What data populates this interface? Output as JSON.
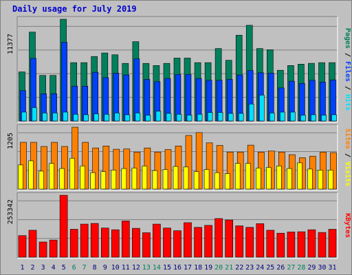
{
  "title": "Daily usage for July 2019",
  "colors": {
    "hits": "#00805c",
    "files": "#0040ff",
    "pages": "#00e0ff",
    "visits": "#ffff00",
    "sites": "#ff8000",
    "kbytes": "#ff0000",
    "weekend_day_label": "#00805c",
    "weekday_label": "#000080"
  },
  "chart_data": [
    {
      "type": "bar",
      "name": "hits-files-pages",
      "categories": [
        "1",
        "2",
        "3",
        "4",
        "5",
        "6",
        "7",
        "8",
        "9",
        "10",
        "11",
        "12",
        "13",
        "14",
        "15",
        "16",
        "17",
        "18",
        "19",
        "20",
        "21",
        "22",
        "23",
        "24",
        "25",
        "26",
        "27",
        "28",
        "29",
        "30",
        "31"
      ],
      "ylabel_parts": [
        "Pages",
        "Files",
        "Hits"
      ],
      "ymax_label": "11377",
      "ylim": [
        0,
        11377
      ],
      "series": [
        {
          "name": "Hits",
          "values": [
            5490,
            9940,
            5100,
            5100,
            11377,
            6530,
            6530,
            7210,
            7600,
            7400,
            6440,
            8870,
            6440,
            6200,
            6440,
            7030,
            7030,
            6530,
            6530,
            8100,
            6790,
            9590,
            10700,
            8100,
            7970,
            5670,
            6200,
            6360,
            6450,
            6530,
            6530
          ]
        },
        {
          "name": "Files",
          "values": [
            3400,
            7000,
            3050,
            3050,
            8800,
            3900,
            3900,
            5450,
            4850,
            5350,
            5150,
            6950,
            4650,
            4400,
            4750,
            5200,
            5200,
            4750,
            4550,
            4550,
            4650,
            5150,
            5650,
            5400,
            5350,
            3700,
            4450,
            4200,
            4550,
            4350,
            4600
          ]
        },
        {
          "name": "Pages",
          "values": [
            1000,
            1500,
            900,
            900,
            1000,
            750,
            700,
            800,
            750,
            900,
            700,
            900,
            650,
            1100,
            850,
            750,
            650,
            750,
            950,
            950,
            850,
            850,
            1900,
            2900,
            900,
            1000,
            1000,
            650,
            700,
            650,
            700
          ]
        }
      ]
    },
    {
      "type": "bar",
      "name": "sites-visits",
      "categories": [
        "1",
        "2",
        "3",
        "4",
        "5",
        "6",
        "7",
        "8",
        "9",
        "10",
        "11",
        "12",
        "13",
        "14",
        "15",
        "16",
        "17",
        "18",
        "19",
        "20",
        "21",
        "22",
        "23",
        "24",
        "25",
        "26",
        "27",
        "28",
        "29",
        "30",
        "31"
      ],
      "ylabel_parts": [
        "Sites",
        "Visits"
      ],
      "ymax_label": "1205",
      "ylim": [
        0,
        1205
      ],
      "series": [
        {
          "name": "Sites",
          "values": [
            910,
            910,
            830,
            910,
            830,
            1205,
            910,
            800,
            840,
            775,
            780,
            720,
            800,
            720,
            770,
            840,
            1045,
            1100,
            900,
            850,
            720,
            720,
            855,
            720,
            740,
            720,
            670,
            610,
            640,
            720,
            710
          ]
        },
        {
          "name": "Visits",
          "values": [
            470,
            550,
            350,
            500,
            400,
            600,
            450,
            320,
            340,
            370,
            400,
            410,
            450,
            360,
            380,
            440,
            430,
            340,
            380,
            320,
            300,
            500,
            500,
            410,
            420,
            450,
            400,
            510,
            390,
            370,
            370
          ]
        }
      ]
    },
    {
      "type": "bar",
      "name": "kbytes",
      "categories": [
        "1",
        "2",
        "3",
        "4",
        "5",
        "6",
        "7",
        "8",
        "9",
        "10",
        "11",
        "12",
        "13",
        "14",
        "15",
        "16",
        "17",
        "18",
        "19",
        "20",
        "21",
        "22",
        "23",
        "24",
        "25",
        "26",
        "27",
        "28",
        "29",
        "30",
        "31"
      ],
      "ylabel_parts": [
        "KBytes"
      ],
      "ymax_label": "253342",
      "ylim": [
        0,
        253342
      ],
      "series": [
        {
          "name": "KBytes",
          "values": [
            88000,
            110000,
            62000,
            70000,
            253342,
            114000,
            135000,
            138000,
            119000,
            112000,
            148000,
            118000,
            100000,
            135000,
            119000,
            108000,
            141000,
            122000,
            130000,
            158000,
            152000,
            128000,
            122000,
            137000,
            110000,
            98000,
            103000,
            104000,
            112000,
            101000,
            114000
          ]
        }
      ]
    }
  ],
  "weekend_days": [
    "6",
    "7",
    "13",
    "14",
    "20",
    "21",
    "27",
    "28"
  ]
}
